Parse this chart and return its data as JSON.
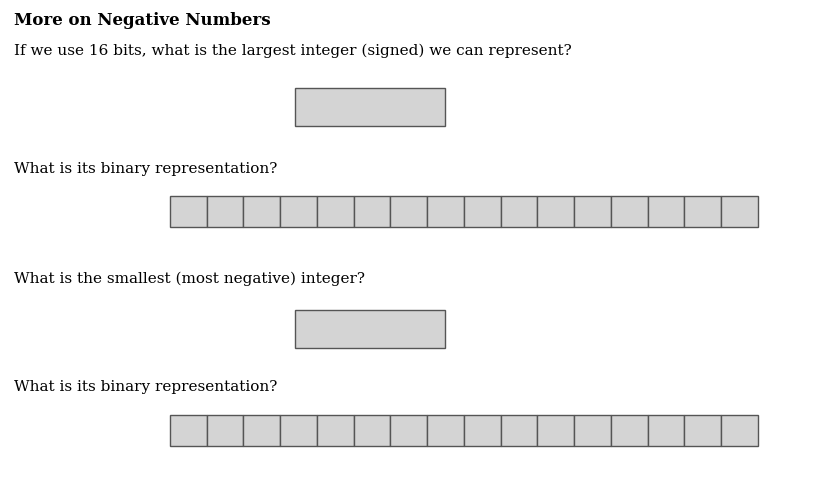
{
  "title": "More on Negative Numbers",
  "q1": "If we use 16 bits, what is the largest integer (signed) we can represent?",
  "q2": "What is its binary representation?",
  "q3": "What is the smallest (most negative) integer?",
  "q4": "What is its binary representation?",
  "bg_color": "#ffffff",
  "box_fill": "#d4d4d4",
  "box_edge": "#555555",
  "num_bits": 16,
  "title_fontsize": 12,
  "text_fontsize": 11
}
